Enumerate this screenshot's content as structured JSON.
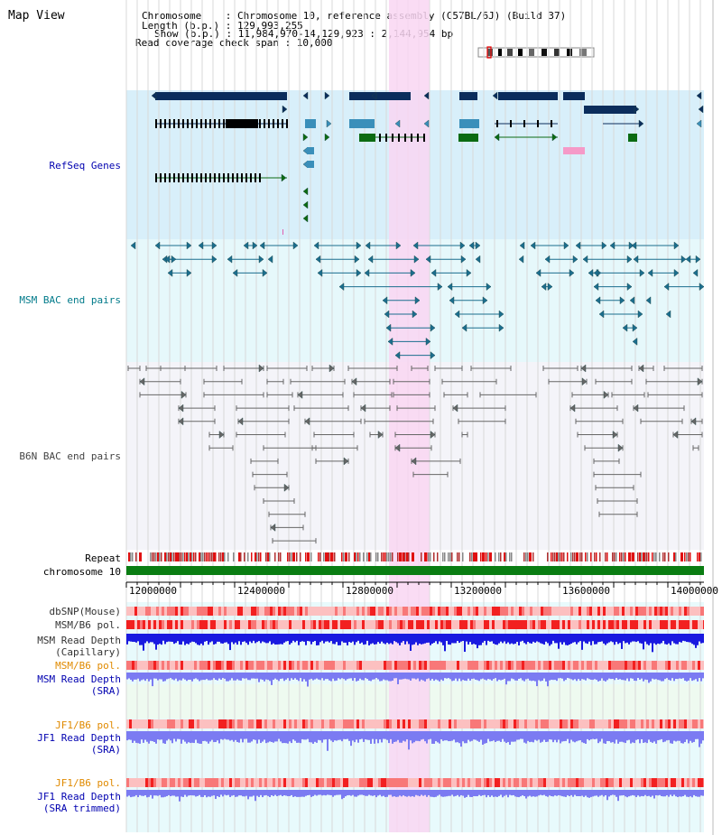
{
  "page": {
    "title": "Map View"
  },
  "header": {
    "chromosome_line": "Chromosome    : Chromosome 10, reference assembly (C57BL/6J) (Build 37)",
    "length_line": "Length (b.p.) : 129,993,255",
    "show_line": "Show (b.p.) : 11,984,970-14,129,923 : 2,144,954 bp",
    "span_line": "Read coverage check span : 10,000"
  },
  "tracks": {
    "refseq": "RefSeq Genes",
    "msm_bac": "MSM BAC end pairs",
    "b6n_bac": "B6N BAC end pairs",
    "repeat": "Repeat",
    "chromosome": "chromosome 10",
    "dbsnp": "dbSNP(Mouse)",
    "msm_b6_pol_1": "MSM/B6 pol.",
    "msm_depth_cap": "MSM Read Depth\n(Capillary)",
    "msm_b6_pol_2": "MSM/B6 pol.",
    "msm_depth_sra": "MSM Read Depth\n(SRA)",
    "jf1_b6_pol_1": "JF1/B6 pol.",
    "jf1_depth_sra": "JF1 Read Depth\n(SRA)",
    "jf1_b6_pol_2": "JF1/B6 pol.",
    "jf1_depth_trim": "JF1 Read Depth\n(SRA trimmed)"
  },
  "axis": {
    "ticks": [
      "12000000",
      "12400000",
      "12800000",
      "13200000",
      "13600000",
      "14000000"
    ],
    "start": 11984970,
    "end": 14129923
  },
  "highlight": {
    "start": 12960000,
    "end": 13110000
  },
  "colors": {
    "refseq_bg": "#d8effa",
    "msm_bg": "#e6f8fb",
    "b6n_bg": "#f4f4f9",
    "highlight": "#f9d6f2",
    "gene_dark": "#0b2d5c",
    "gene_mid": "#3a8fba",
    "gene_green": "#0b6b12",
    "msm_bac": "#1b6e8e",
    "b6n_bac": "#666666",
    "chrom_green": "#0a7d12",
    "depth_cap": "#1a1ae0",
    "depth_sra": "#7b7bf2",
    "label_blue": "#0000b0",
    "label_teal": "#007a8a",
    "label_orange": "#e08a00"
  }
}
